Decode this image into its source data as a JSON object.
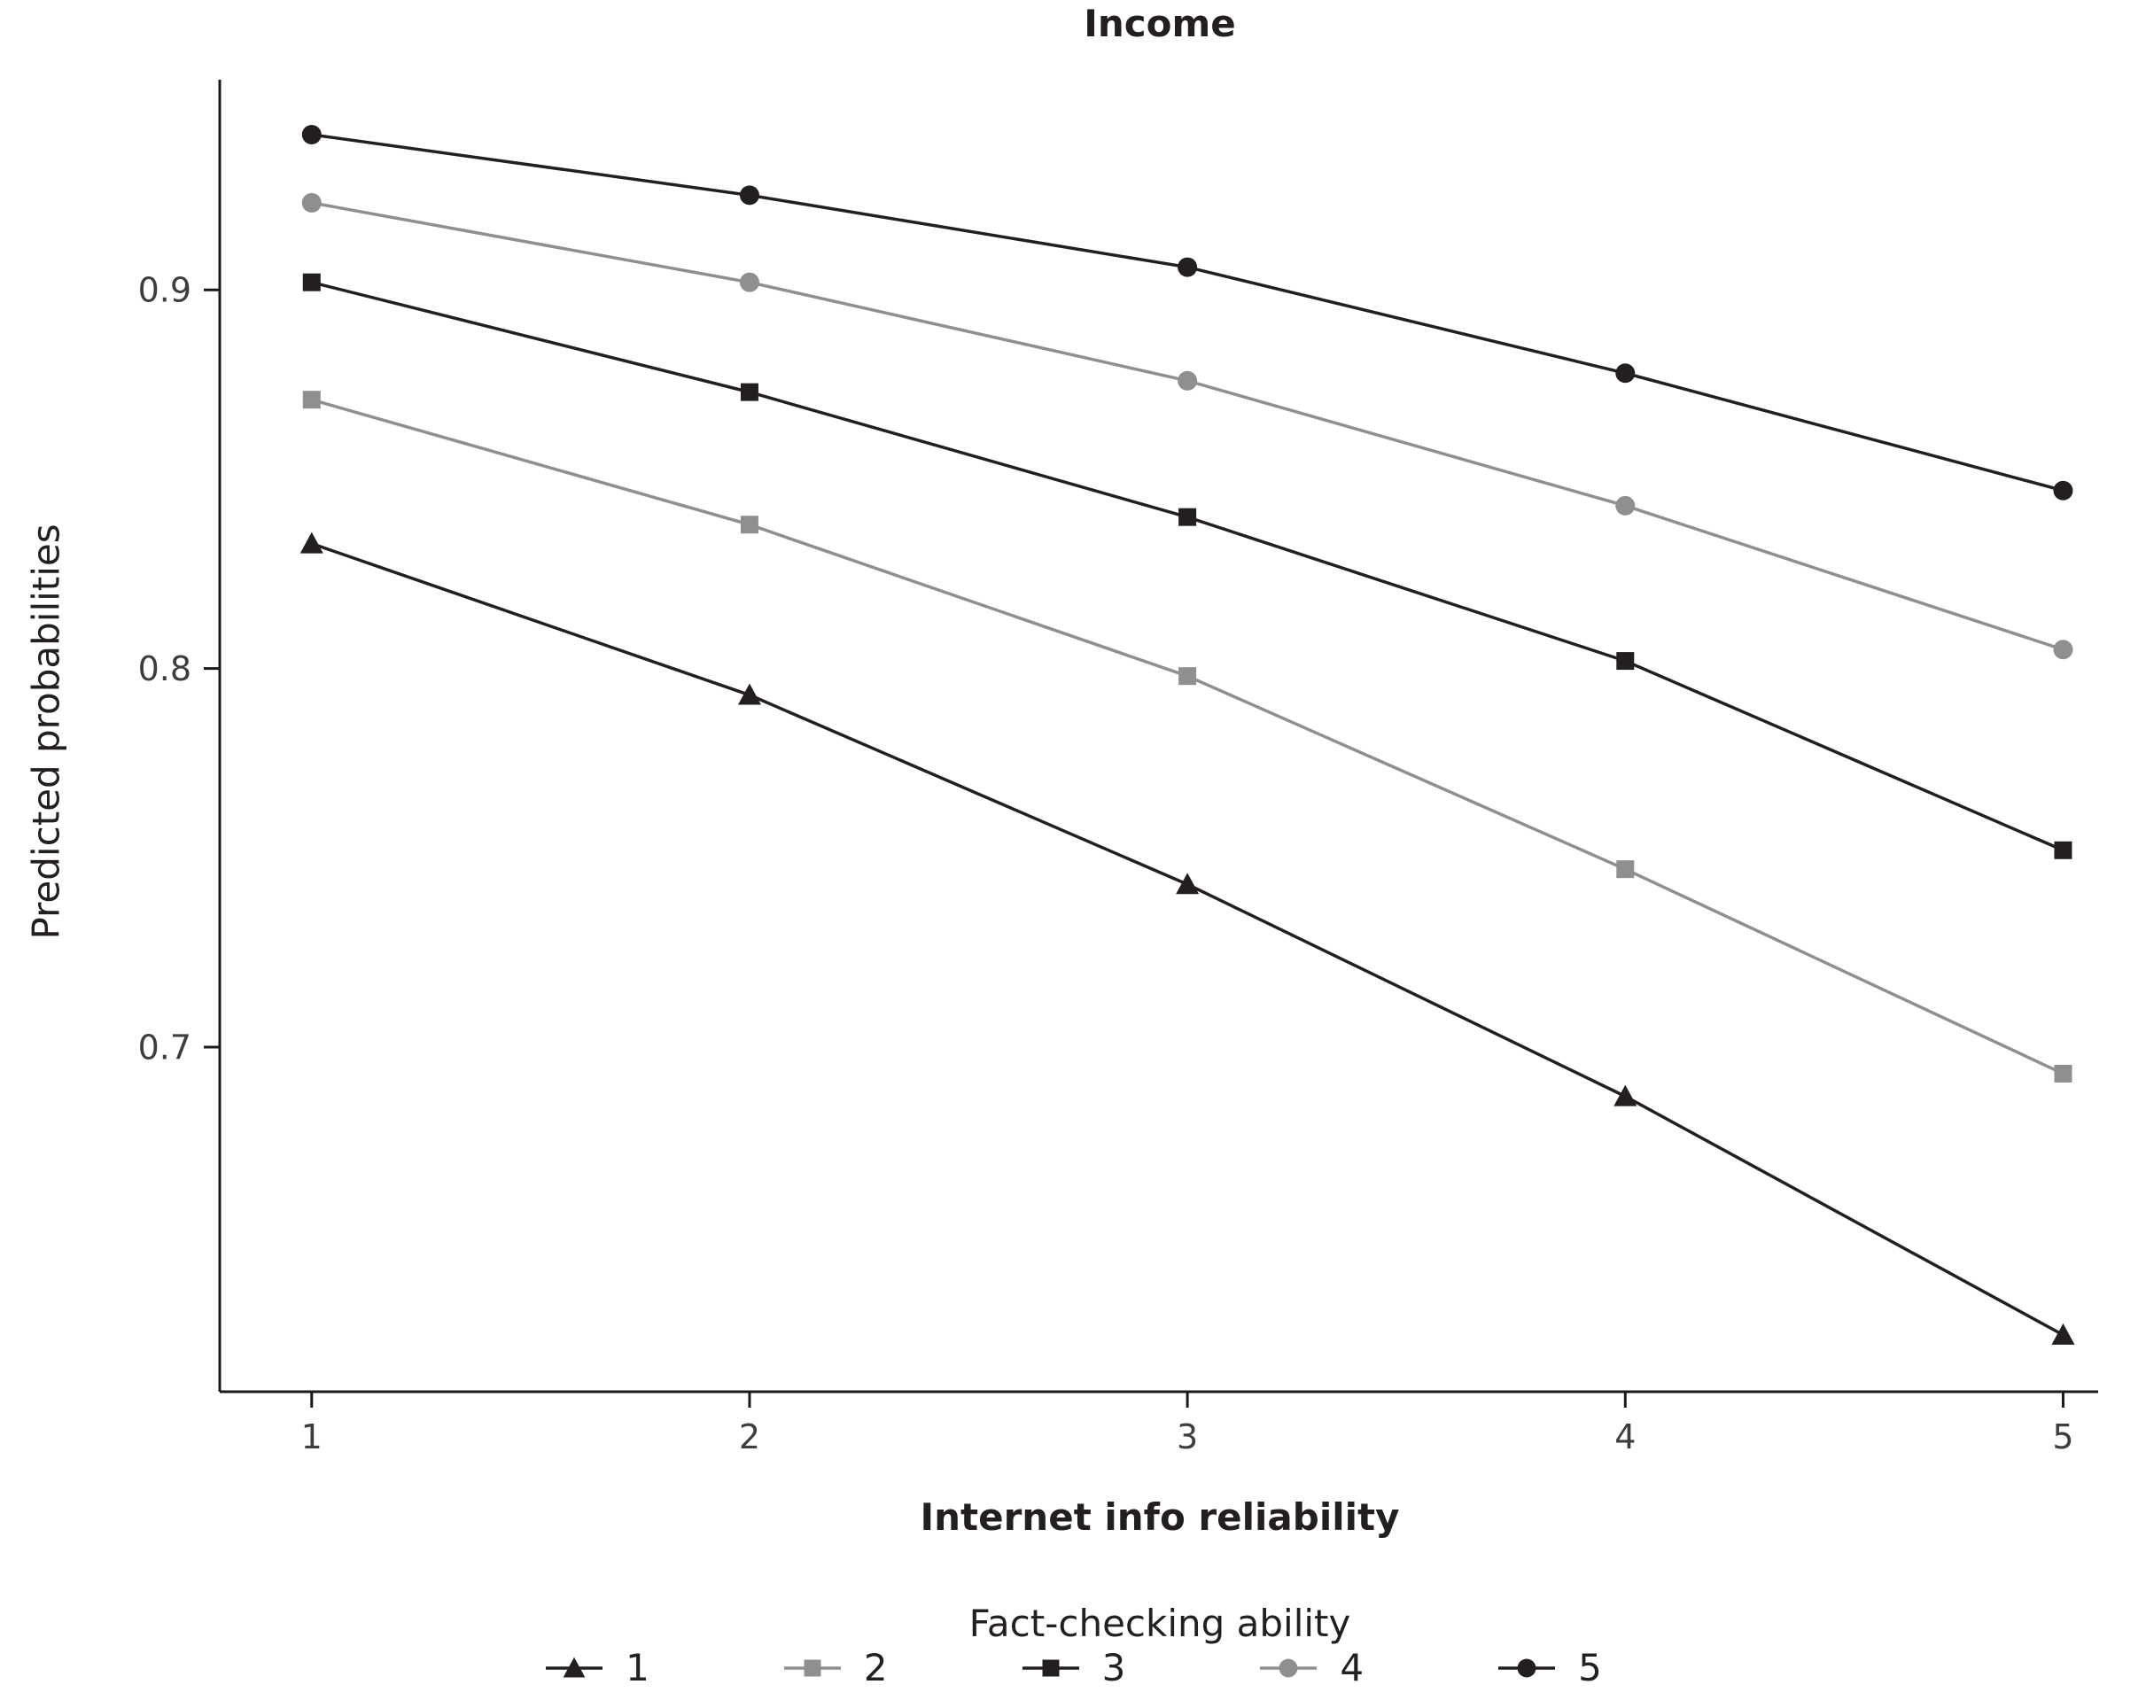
{
  "chart_data": {
    "type": "line",
    "title": "Income",
    "xlabel": "Internet info reliability",
    "ylabel": "Predicted probabilities",
    "legend_title": "Fact-checking ability",
    "legend_position": "bottom",
    "grid": false,
    "x": [
      1,
      2,
      3,
      4,
      5
    ],
    "xticks": [
      "1",
      "2",
      "3",
      "4",
      "5"
    ],
    "yticks": [
      "0.7",
      "0.8",
      "0.9"
    ],
    "ytick_values": [
      0.7,
      0.8,
      0.9
    ],
    "xlim": [
      0.79,
      5.08
    ],
    "ylim": [
      0.609,
      0.9555
    ],
    "colors": {
      "black": "#231f20",
      "gray": "#8f8f8f"
    },
    "series": [
      {
        "name": "1",
        "marker": "triangle",
        "color": "#231f20",
        "values": [
          0.833,
          0.793,
          0.743,
          0.687,
          0.624
        ]
      },
      {
        "name": "2",
        "marker": "square",
        "color": "#8f8f8f",
        "values": [
          0.871,
          0.838,
          0.798,
          0.747,
          0.693
        ]
      },
      {
        "name": "3",
        "marker": "square",
        "color": "#231f20",
        "values": [
          0.902,
          0.873,
          0.84,
          0.802,
          0.752
        ]
      },
      {
        "name": "4",
        "marker": "circle",
        "color": "#8f8f8f",
        "values": [
          0.923,
          0.902,
          0.876,
          0.843,
          0.805
        ]
      },
      {
        "name": "5",
        "marker": "circle",
        "color": "#231f20",
        "values": [
          0.941,
          0.925,
          0.906,
          0.878,
          0.847
        ]
      }
    ]
  }
}
